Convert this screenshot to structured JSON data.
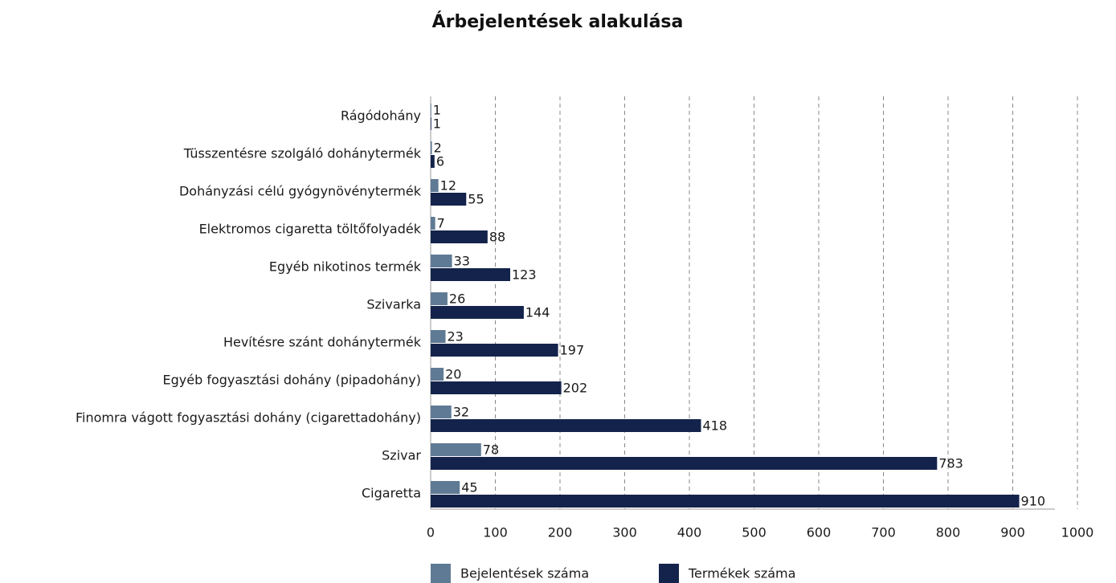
{
  "chart_data": {
    "type": "bar",
    "orientation": "horizontal",
    "title": "Árbejelentések alakulása",
    "categories": [
      "Rágódohány",
      "Tüsszentésre szolgáló dohánytermék",
      "Dohányzási célú gyógynövénytermék",
      "Elektromos cigaretta töltőfolyadék",
      "Egyéb nikotinos termék",
      "Szivarka",
      "Hevítésre szánt dohánytermék",
      "Egyéb fogyasztási dohány (pipadohány)",
      "Finomra vágott fogyasztási dohány (cigarettadohány)",
      "Szivar",
      "Cigaretta"
    ],
    "series": [
      {
        "name": "Bejelentések száma",
        "color": "#5f7a94",
        "values": [
          1,
          2,
          12,
          7,
          33,
          26,
          23,
          20,
          32,
          78,
          45
        ]
      },
      {
        "name": "Termékek száma",
        "color": "#14234b",
        "values": [
          1,
          6,
          55,
          88,
          123,
          144,
          197,
          202,
          418,
          783,
          910
        ]
      }
    ],
    "xlim": [
      0,
      1000
    ],
    "xticks": [
      0,
      100,
      200,
      300,
      400,
      500,
      600,
      700,
      800,
      900,
      1000
    ],
    "grid": true,
    "legend": "bottom"
  }
}
